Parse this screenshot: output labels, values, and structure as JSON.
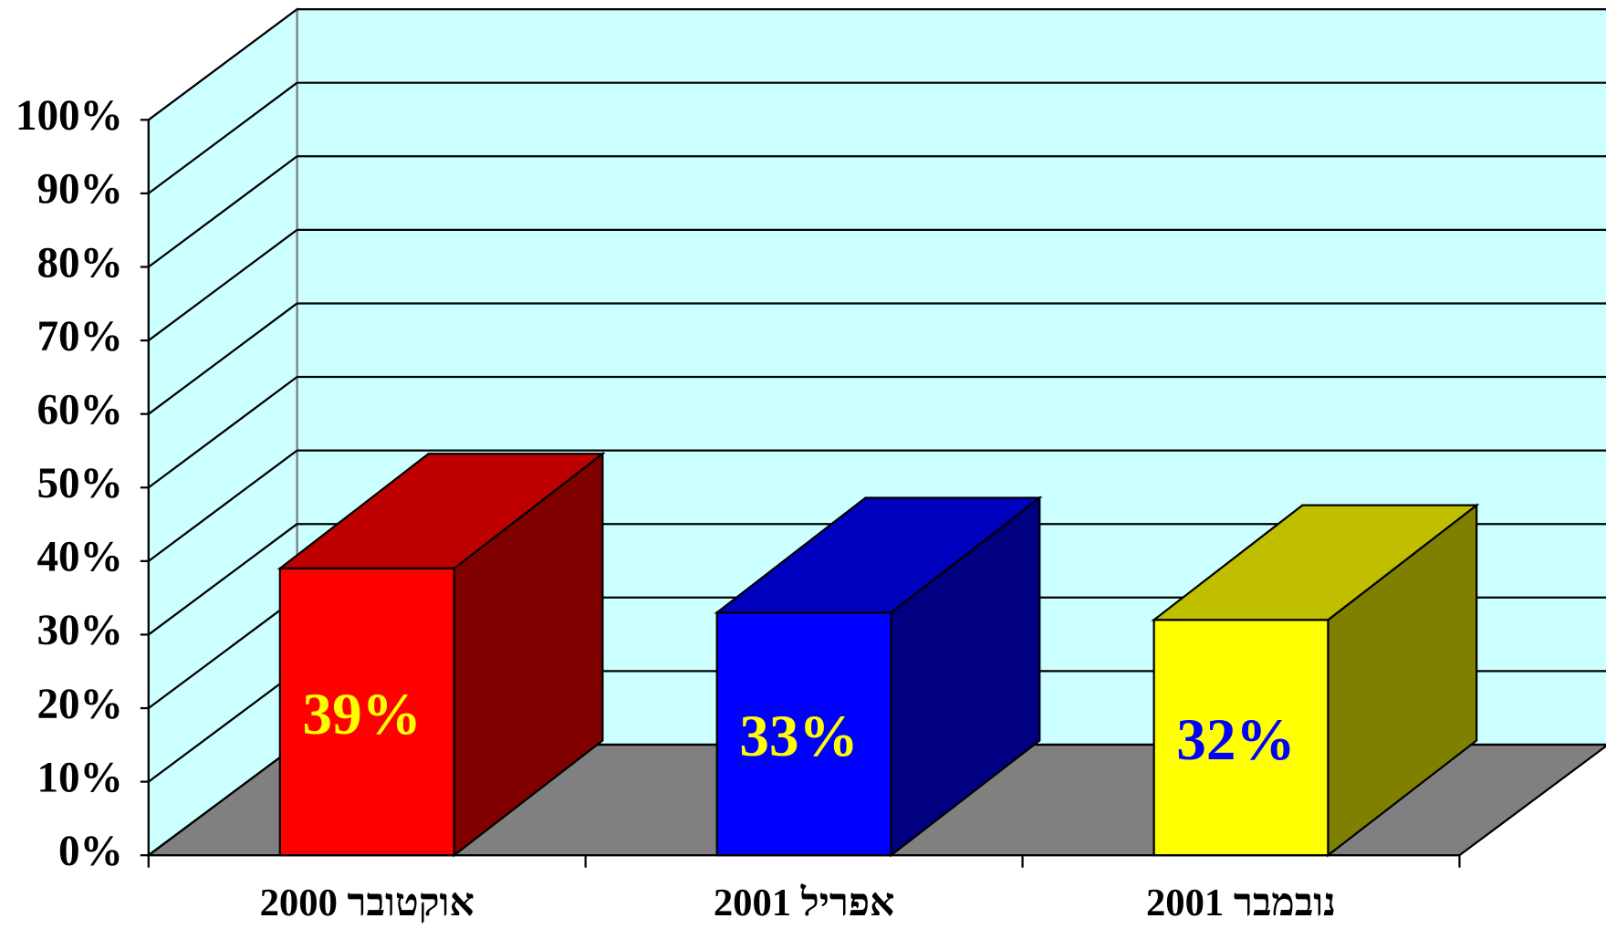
{
  "chart_data": {
    "type": "bar3d",
    "categories": [
      "אוקטובר 2000",
      "אפריל 2001",
      "נובמבר 2001"
    ],
    "values": [
      39,
      33,
      32
    ],
    "value_labels": [
      "39%",
      "33%",
      "32%"
    ],
    "colors": [
      "#ff0000",
      "#0000ff",
      "#ffff00"
    ],
    "label_colors": [
      "#ffff00",
      "#ffff00",
      "#0000ff"
    ],
    "wall_color": "#ccffff",
    "floor_color": "#808080",
    "ylim": [
      0,
      100
    ],
    "yticks": [
      {
        "value": 0,
        "label": "0%"
      },
      {
        "value": 10,
        "label": "10%"
      },
      {
        "value": 20,
        "label": "20%"
      },
      {
        "value": 30,
        "label": "30%"
      },
      {
        "value": 40,
        "label": "40%"
      },
      {
        "value": 50,
        "label": "50%"
      },
      {
        "value": 60,
        "label": "60%"
      },
      {
        "value": 70,
        "label": "70%"
      },
      {
        "value": 80,
        "label": "80%"
      },
      {
        "value": 90,
        "label": "90%"
      },
      {
        "value": 100,
        "label": "100%"
      }
    ],
    "grid": true
  }
}
